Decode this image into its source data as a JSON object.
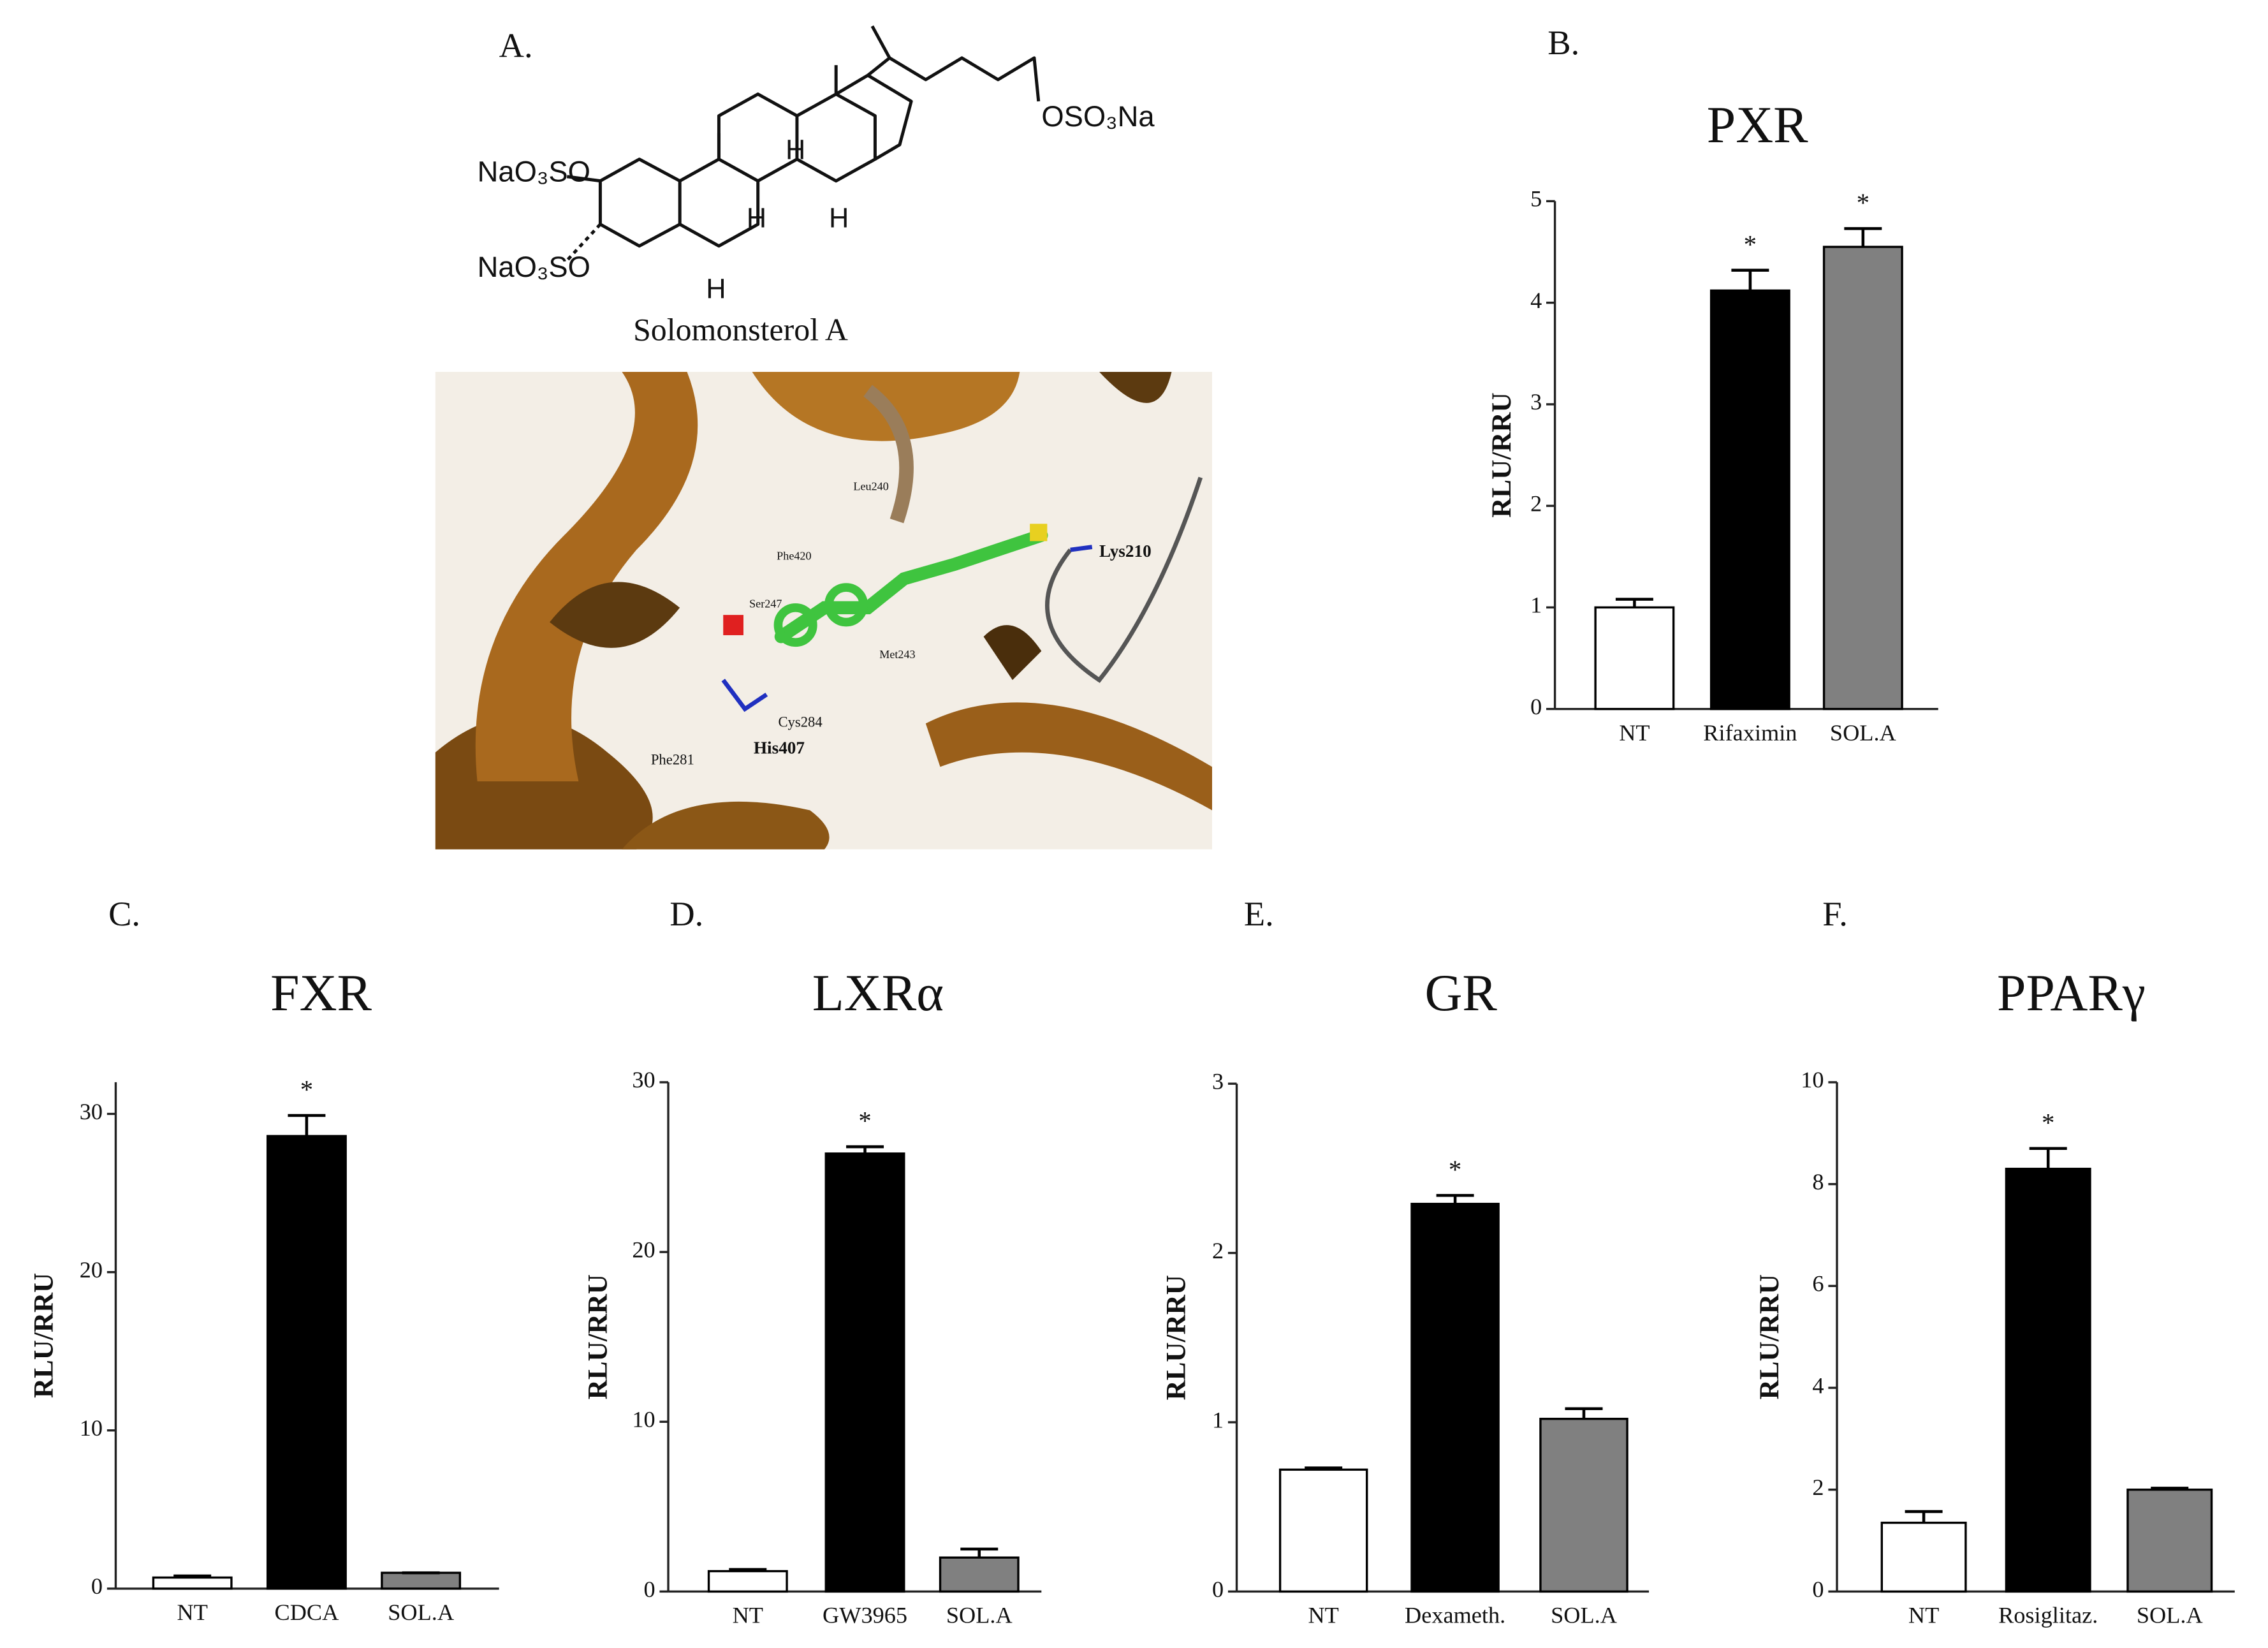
{
  "panel_a": {
    "label": "A.",
    "structure": {
      "name": "Solomonsterol A",
      "groups": [
        "NaO₃SO",
        "NaO₃SO",
        "OSO₃Na"
      ],
      "hydrogens": [
        "H",
        "H",
        "H",
        "H"
      ]
    },
    "docking": {
      "residues": [
        "Leu240",
        "Phe420",
        "Ser247",
        "Met243",
        "Lys210",
        "Cys284",
        "His407",
        "Phe281"
      ]
    }
  },
  "chart_data": [
    {
      "type": "bar",
      "panel": "B.",
      "title": "PXR",
      "y_label": "RLU/RRU",
      "categories": [
        "NT",
        "Rifaximin",
        "SOL.A"
      ],
      "values": [
        1.0,
        4.12,
        4.55
      ],
      "errors": [
        0.08,
        0.2,
        0.18
      ],
      "colors": [
        "#ffffff",
        "#000000",
        "#808080"
      ],
      "significance": [
        null,
        "*",
        "*"
      ],
      "ylim": [
        0,
        5
      ],
      "yticks": [
        0,
        1,
        2,
        3,
        4,
        5
      ]
    },
    {
      "type": "bar",
      "panel": "C.",
      "title": "FXR",
      "y_label": "RLU/RRU",
      "categories": [
        "NT",
        "CDCA",
        "SOL.A"
      ],
      "values": [
        0.7,
        28.6,
        1.0
      ],
      "errors": [
        0.1,
        1.3,
        0
      ],
      "colors": [
        "#ffffff",
        "#000000",
        "#808080"
      ],
      "significance": [
        null,
        "*",
        null
      ],
      "ylim": [
        0,
        32
      ],
      "yticks": [
        0,
        10,
        20,
        30
      ]
    },
    {
      "type": "bar",
      "panel": "D.",
      "title": "LXRα",
      "y_label": "RLU/RRU",
      "categories": [
        "NT",
        "GW3965",
        "SOL.A"
      ],
      "values": [
        1.2,
        25.8,
        2.0
      ],
      "errors": [
        0.1,
        0.4,
        0.5
      ],
      "colors": [
        "#ffffff",
        "#000000",
        "#808080"
      ],
      "significance": [
        null,
        "*",
        null
      ],
      "ylim": [
        0,
        30
      ],
      "yticks": [
        0,
        10,
        20,
        30
      ]
    },
    {
      "type": "bar",
      "panel": "E.",
      "title": "GR",
      "y_label": "RLU/RRU",
      "categories": [
        "NT",
        "Dexameth.",
        "SOL.A"
      ],
      "values": [
        0.72,
        2.29,
        1.02
      ],
      "errors": [
        0.01,
        0.05,
        0.06
      ],
      "colors": [
        "#ffffff",
        "#000000",
        "#808080"
      ],
      "significance": [
        null,
        "*",
        null
      ],
      "ylim": [
        0,
        3
      ],
      "yticks": [
        0,
        1,
        2,
        3
      ]
    },
    {
      "type": "bar",
      "panel": "F.",
      "title": "PPARγ",
      "y_label": "RLU/RRU",
      "categories": [
        "NT",
        "Rosiglitaz.",
        "SOL.A"
      ],
      "values": [
        1.35,
        8.3,
        2.0
      ],
      "errors": [
        0.22,
        0.4,
        0.03
      ],
      "colors": [
        "#ffffff",
        "#000000",
        "#808080"
      ],
      "significance": [
        null,
        "*",
        null
      ],
      "ylim": [
        0,
        10
      ],
      "yticks": [
        0,
        2,
        4,
        6,
        8,
        10
      ]
    }
  ]
}
